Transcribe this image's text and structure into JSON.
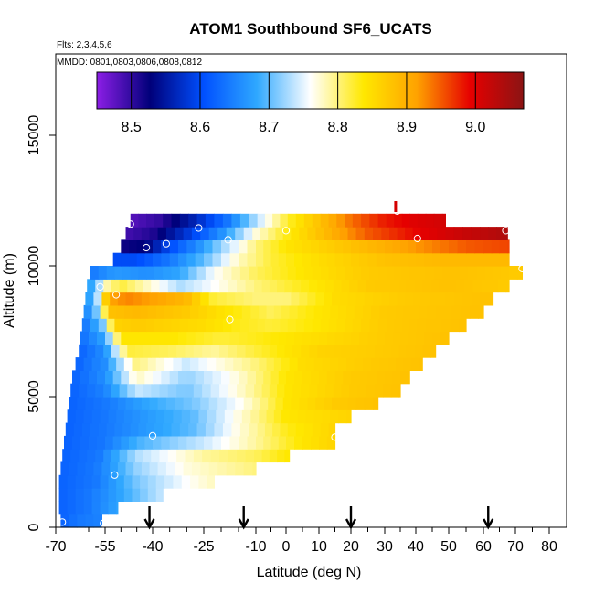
{
  "chart_data": {
    "type": "heatmap",
    "title": "ATOM1 Southbound SF6_UCATS",
    "annotations": [
      "Flts: 2,3,4,5,6",
      "MMDD: 0801,0803,0806,0808,0812"
    ],
    "xlabel": "Latitude (deg N)",
    "ylabel": "Altitude (m)",
    "xlim": [
      -70,
      80
    ],
    "ylim": [
      0,
      17500
    ],
    "x_ticks": [
      "-70",
      "-55",
      "-40",
      "-25",
      "-10",
      "0",
      "10",
      "20",
      "30",
      "40",
      "50",
      "60",
      "70",
      "80"
    ],
    "x_tick_values": [
      -70,
      -55,
      -40,
      -25,
      -10,
      0,
      10,
      20,
      30,
      40,
      50,
      60,
      70,
      80
    ],
    "x_minor_ticks": [
      -60,
      -50,
      -45,
      -35,
      -30,
      -20,
      -15,
      -5,
      5,
      15,
      25,
      35,
      45,
      55,
      65,
      75
    ],
    "y_ticks": [
      "0",
      "5000",
      "10000",
      "15000"
    ],
    "y_tick_values": [
      0,
      5000,
      10000,
      15000
    ],
    "colorbar": {
      "range": [
        8.45,
        9.07
      ],
      "tick_labels": [
        "8.5",
        "8.6",
        "8.7",
        "8.8",
        "8.9",
        "9.0"
      ],
      "tick_values": [
        8.5,
        8.6,
        8.7,
        8.8,
        8.9,
        9.0
      ],
      "colors": [
        "#8c1ee6",
        "#00007a",
        "#0050ff",
        "#2fa8ff",
        "#ffffff",
        "#ffe800",
        "#ffa200",
        "#e60000",
        "#8b1414"
      ]
    },
    "observations": [
      {
        "lat": -68,
        "alt": 200
      },
      {
        "lat": -55.5,
        "alt": 150
      },
      {
        "lat": -52,
        "alt": 2000
      },
      {
        "lat": -40,
        "alt": 3500
      },
      {
        "lat": 15,
        "alt": 3450
      },
      {
        "lat": -56.5,
        "alt": 9200
      },
      {
        "lat": -51.5,
        "alt": 8900
      },
      {
        "lat": -17.5,
        "alt": 7950
      },
      {
        "lat": -47,
        "alt": 11600
      },
      {
        "lat": -42,
        "alt": 10700
      },
      {
        "lat": -36,
        "alt": 10850
      },
      {
        "lat": -26.5,
        "alt": 11450
      },
      {
        "lat": -18,
        "alt": 11000
      },
      {
        "lat": 0,
        "alt": 11350
      },
      {
        "lat": 34,
        "alt": 12100
      },
      {
        "lat": 40.5,
        "alt": 11050
      },
      {
        "lat": 67,
        "alt": 11350
      },
      {
        "lat": 72,
        "alt": 9900
      }
    ],
    "arrow_latitudes": [
      -41,
      -13.5,
      20,
      61.5
    ],
    "marker_latitude": 33.5,
    "levels": [
      {
        "alt": 250,
        "lat_range": [
          -68.5,
          -56
        ],
        "values": {
          "-68.5": 8.62,
          "-63": 8.64,
          "-56": 8.65
        }
      },
      {
        "alt": 750,
        "lat_range": [
          -69,
          -51
        ],
        "values": {
          "-69": 8.62,
          "-60": 8.64,
          "-51": 8.68
        }
      },
      {
        "alt": 1250,
        "lat_range": [
          -69,
          -37
        ],
        "values": {
          "-69": 8.62,
          "-60": 8.64,
          "-50": 8.68,
          "-37": 8.74
        }
      },
      {
        "alt": 1750,
        "lat_range": [
          -69,
          -22
        ],
        "values": {
          "-69": 8.62,
          "-58": 8.64,
          "-45": 8.71,
          "-30": 8.76,
          "-22": 8.78
        }
      },
      {
        "alt": 2250,
        "lat_range": [
          -68.5,
          -10
        ],
        "values": {
          "-68.5": 8.62,
          "-58": 8.64,
          "-45": 8.72,
          "-30": 8.77,
          "-10": 8.8
        }
      },
      {
        "alt": 2750,
        "lat_range": [
          -68,
          1
        ],
        "values": {
          "-68": 8.62,
          "-57": 8.64,
          "-45": 8.73,
          "-25": 8.79,
          "-10": 8.81,
          "1": 8.84
        }
      },
      {
        "alt": 3250,
        "lat_range": [
          -67.5,
          15
        ],
        "values": {
          "-67.5": 8.62,
          "-55": 8.64,
          "-45": 8.69,
          "-25": 8.74,
          "-10": 8.79,
          "5": 8.84,
          "15": 8.86
        }
      },
      {
        "alt": 3750,
        "lat_range": [
          -67,
          15
        ],
        "values": {
          "-67": 8.62,
          "-55": 8.64,
          "-42": 8.67,
          "-28": 8.7,
          "-15": 8.77,
          "0": 8.83,
          "15": 8.86
        }
      },
      {
        "alt": 4250,
        "lat_range": [
          -66.5,
          20
        ],
        "values": {
          "-66.5": 8.62,
          "-55": 8.64,
          "-42": 8.67,
          "-28": 8.7,
          "-15": 8.77,
          "0": 8.84,
          "20": 8.86
        }
      },
      {
        "alt": 4750,
        "lat_range": [
          -66,
          28
        ],
        "values": {
          "-66": 8.62,
          "-55": 8.64,
          "-42": 8.68,
          "-28": 8.71,
          "-15": 8.76,
          "0": 8.84,
          "15": 8.87,
          "28": 8.88
        }
      },
      {
        "alt": 5250,
        "lat_range": [
          -65.5,
          35
        ],
        "values": {
          "-65.5": 8.62,
          "-55": 8.65,
          "-45": 8.74,
          "-30": 8.71,
          "-18": 8.76,
          "0": 8.84,
          "20": 8.87,
          "35": 8.88
        }
      },
      {
        "alt": 5750,
        "lat_range": [
          -65,
          38
        ],
        "values": {
          "-65": 8.62,
          "-55": 8.66,
          "-45": 8.78,
          "-30": 8.72,
          "-18": 8.76,
          "0": 8.84,
          "20": 8.87,
          "38": 8.88
        }
      },
      {
        "alt": 6250,
        "lat_range": [
          -64,
          42
        ],
        "values": {
          "-64": 8.62,
          "-55": 8.66,
          "-45": 8.8,
          "-30": 8.74,
          "-20": 8.77,
          "-10": 8.8,
          "5": 8.85,
          "25": 8.87,
          "42": 8.88
        }
      },
      {
        "alt": 6750,
        "lat_range": [
          -63,
          46
        ],
        "values": {
          "-63": 8.62,
          "-55": 8.66,
          "-48": 8.82,
          "-35": 8.81,
          "-22": 8.79,
          "-10": 8.82,
          "10": 8.86,
          "30": 8.87,
          "46": 8.88
        }
      },
      {
        "alt": 7250,
        "lat_range": [
          -62.5,
          50
        ],
        "values": {
          "-62.5": 8.63,
          "-55": 8.68,
          "-50": 8.84,
          "-35": 8.84,
          "-20": 8.82,
          "-10": 8.83,
          "10": 8.85,
          "30": 8.87,
          "50": 8.88
        }
      },
      {
        "alt": 7750,
        "lat_range": [
          -62,
          55
        ],
        "values": {
          "-62": 8.63,
          "-56": 8.7,
          "-52": 8.86,
          "-45": 8.87,
          "-25": 8.85,
          "-15": 8.83,
          "-5": 8.82,
          "10": 8.84,
          "30": 8.87,
          "55": 8.88
        }
      },
      {
        "alt": 8250,
        "lat_range": [
          -61.5,
          60
        ],
        "values": {
          "-61.5": 8.64,
          "-57": 8.72,
          "-54": 8.88,
          "-45": 8.89,
          "-30": 8.87,
          "-18": 8.84,
          "-5": 8.81,
          "10": 8.84,
          "30": 8.87,
          "60": 8.88
        }
      },
      {
        "alt": 8750,
        "lat_range": [
          -61,
          63
        ],
        "values": {
          "-61": 8.65,
          "-57": 8.74,
          "-54": 8.91,
          "-48": 8.93,
          "-38": 8.91,
          "-30": 8.89,
          "-22": 8.82,
          "-10": 8.8,
          "0": 8.8,
          "15": 8.85,
          "35": 8.87,
          "63": 8.88
        }
      },
      {
        "alt": 9250,
        "lat_range": [
          -60.5,
          68
        ],
        "values": {
          "-60.5": 8.66,
          "-57": 8.72,
          "-55": 8.78,
          "-50": 8.82,
          "-42": 8.78,
          "-32": 8.73,
          "-22": 8.76,
          "-10": 8.8,
          "5": 8.83,
          "25": 8.87,
          "50": 8.88,
          "68": 8.87
        }
      },
      {
        "alt": 9750,
        "lat_range": [
          -59.5,
          72
        ],
        "values": {
          "-59.5": 8.64,
          "-52": 8.67,
          "-42": 8.66,
          "-32": 8.68,
          "-22": 8.76,
          "-10": 8.81,
          "5": 8.84,
          "25": 8.87,
          "50": 8.88,
          "72": 8.87
        }
      },
      {
        "alt": 10250,
        "lat_range": [
          -52.5,
          68
        ],
        "values": {
          "-52.5": 8.6,
          "-45": 8.6,
          "-35": 8.64,
          "-25": 8.7,
          "-15": 8.78,
          "-5": 8.82,
          "10": 8.85,
          "30": 8.88,
          "50": 8.89,
          "68": 8.89
        }
      },
      {
        "alt": 10750,
        "lat_range": [
          -50,
          68
        ],
        "values": {
          "-50": 8.52,
          "-42": 8.53,
          "-35": 8.6,
          "-28": 8.65,
          "-20": 8.72,
          "-10": 8.8,
          "0": 8.84,
          "15": 8.87,
          "30": 8.9,
          "45": 8.93,
          "55": 8.95,
          "68": 8.96
        }
      },
      {
        "alt": 11250,
        "lat_range": [
          -48.5,
          67.5
        ],
        "values": {
          "-48.5": 8.49,
          "-40": 8.51,
          "-30": 8.58,
          "-20": 8.66,
          "-10": 8.77,
          "0": 8.83,
          "10": 8.88,
          "25": 8.95,
          "40": 8.99,
          "55": 9.02,
          "67.5": 9.04
        }
      },
      {
        "alt": 11750,
        "lat_range": [
          -47,
          49
        ],
        "values": {
          "-47": 8.48,
          "-38": 8.5,
          "-28": 8.56,
          "-18": 8.64,
          "-10": 8.73,
          "0": 8.82,
          "10": 8.88,
          "20": 8.94,
          "30": 8.98,
          "40": 9.0,
          "49": 9.01
        }
      }
    ]
  }
}
